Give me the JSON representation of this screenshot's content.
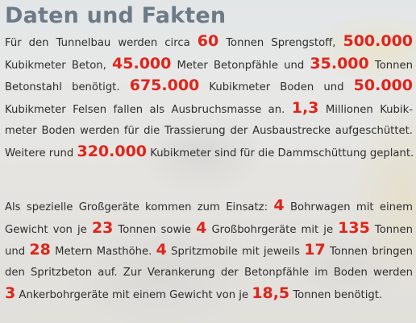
{
  "title": "Daten und Fakten",
  "paragraph1": [
    [
      "Für den Tunnelbau  werden circa ",
      {
        "hl": "60"
      },
      " Tonnen Sprengstoff, ",
      {
        "hl": "500.000"
      }
    ],
    [
      "Kubikmeter Beton, ",
      {
        "hl": "45.000"
      },
      " Meter Betonpfähle und ",
      {
        "hl": "35.000"
      },
      " Tonnen"
    ],
    [
      "Betonstahl benötigt. ",
      {
        "hl": "675.000"
      },
      " Kubikmeter Boden und ",
      {
        "hl": "50.000"
      }
    ],
    [
      "Kubikmeter Felsen fallen als Ausbruchsmasse an. ",
      {
        "hl": "1,3"
      },
      " Millionen Kubik-"
    ],
    [
      "meter Boden werden für die Trassierung der Ausbaustrecke aufgeschüttet."
    ],
    [
      "Weitere rund ",
      {
        "hl": "320.000"
      },
      " Kubikmeter sind für die Dammschüttung geplant."
    ]
  ],
  "paragraph2": [
    [
      "Als spezielle Großgeräte kommen zum Einsatz: ",
      {
        "hl": "4"
      },
      " Bohrwagen mit einem"
    ],
    [
      "Gewicht von je ",
      {
        "hl": "23"
      },
      " Tonnen sowie ",
      {
        "hl": "4"
      },
      " Großbohrgeräte mit je ",
      {
        "hl": "135"
      },
      " Tonnen"
    ],
    [
      "und ",
      {
        "hl": "28"
      },
      " Metern Masthöhe. ",
      {
        "hl": "4"
      },
      " Spritzmobile mit jeweils ",
      {
        "hl": "17"
      },
      " Tonnen bringen"
    ],
    [
      "den Spritzbeton auf. Zur Verankerung der Betonpfähle im Boden werden"
    ],
    [
      {
        "hl": "3"
      },
      " Ankerbohrgeräte mit einem Gewicht von je ",
      {
        "hl": "18,5"
      },
      " Tonnen benötigt."
    ]
  ]
}
